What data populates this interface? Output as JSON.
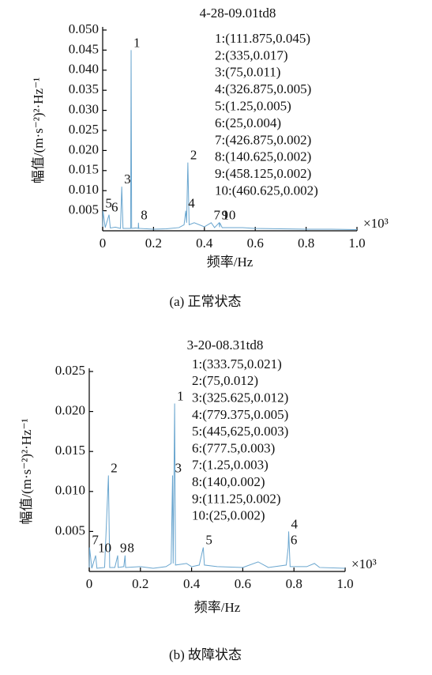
{
  "chart_data": [
    {
      "type": "line",
      "title": "4-28-09.01td8",
      "x_label": "频率/Hz",
      "y_label": "幅值/(m·s⁻²)²·Hz⁻¹",
      "x_multiplier": "×10³",
      "caption": "(a) 正常状态",
      "xlim": [
        0,
        1
      ],
      "xticks": [
        0,
        0.2,
        0.4,
        0.6,
        0.8,
        {
          "value": 1,
          "label": "1.0"
        }
      ],
      "ylim": [
        0,
        0.05
      ],
      "yticks": [
        0.005,
        {
          "value": 0.01,
          "label": "0.010"
        },
        0.015,
        {
          "value": 0.02,
          "label": "0.020"
        },
        0.025,
        {
          "value": 0.03,
          "label": "0.030"
        },
        0.035,
        {
          "value": 0.04,
          "label": "0.040"
        },
        0.045,
        {
          "value": 0.05,
          "label": "0.050"
        }
      ],
      "x": [
        0,
        0.00125,
        0.01,
        0.025,
        0.03,
        0.05,
        0.07,
        0.075,
        0.08,
        0.1,
        0.11,
        0.111875,
        0.114,
        0.13,
        0.14,
        0.140625,
        0.142,
        0.2,
        0.25,
        0.3,
        0.32,
        0.326875,
        0.33,
        0.335,
        0.34,
        0.36,
        0.4,
        0.426875,
        0.44,
        0.458125,
        0.46,
        0.460625,
        0.47,
        0.55,
        0.6,
        0.7,
        0.8,
        0.9,
        1.0
      ],
      "series": [
        {
          "color": "#6aa6cf",
          "values": [
            0.001,
            0.005,
            0.0008,
            0.004,
            0.0007,
            0.0009,
            0.0006,
            0.011,
            0.0006,
            0.0006,
            0.0006,
            0.045,
            0.0006,
            0.0007,
            0.0006,
            0.002,
            0.0006,
            0.0004,
            0.0005,
            0.0008,
            0.0015,
            0.005,
            0.002,
            0.017,
            0.0015,
            0.002,
            0.001,
            0.002,
            0.0008,
            0.002,
            0.0009,
            0.002,
            0.0008,
            0.0008,
            0.0006,
            0.0005,
            0.0004,
            0.0004,
            0.0003
          ]
        }
      ],
      "peak_labels": [
        {
          "text": "1",
          "x": 0.111875,
          "y": 0.045
        },
        {
          "text": "2",
          "x": 0.335,
          "y": 0.017
        },
        {
          "text": "3",
          "x": 0.075,
          "y": 0.011
        },
        {
          "text": "4",
          "x": 0.326875,
          "y": 0.005
        },
        {
          "text": "5",
          "x": 0.00125,
          "y": 0.005
        },
        {
          "text": "6",
          "x": 0.025,
          "y": 0.004
        },
        {
          "text": "7",
          "x": 0.426875,
          "y": 0.002
        },
        {
          "text": "8",
          "x": 0.140625,
          "y": 0.002
        },
        {
          "text": "9",
          "x": 0.458125,
          "y": 0.002
        },
        {
          "text": "10",
          "x": 0.460625,
          "y": 0.002
        }
      ],
      "annotations": [
        "1:(111.875,0.045)",
        "2:(335,0.017)",
        "3:(75,0.011)",
        "4:(326.875,0.005)",
        "5:(1.25,0.005)",
        "6:(25,0.004)",
        "7:(426.875,0.002)",
        "8:(140.625,0.002)",
        "9:(458.125,0.002)",
        "10:(460.625,0.002)"
      ]
    },
    {
      "type": "line",
      "title": "3-20-08.31td8",
      "x_label": "频率/Hz",
      "y_label": "幅值/(m·s⁻²)²·Hz⁻¹",
      "x_multiplier": "×10³",
      "caption": "(b) 故障状态",
      "xlim": [
        0,
        1
      ],
      "xticks": [
        0,
        0.2,
        0.4,
        0.6,
        0.8,
        {
          "value": 1,
          "label": "1.0"
        }
      ],
      "ylim": [
        0,
        0.025
      ],
      "yticks": [
        0.005,
        {
          "value": 0.01,
          "label": "0.010"
        },
        0.015,
        {
          "value": 0.02,
          "label": "0.020"
        },
        0.025
      ],
      "x": [
        0,
        0.00125,
        0.01,
        0.025,
        0.03,
        0.06,
        0.075,
        0.08,
        0.1,
        0.11125,
        0.113,
        0.135,
        0.14,
        0.142,
        0.2,
        0.25,
        0.3,
        0.32,
        0.325625,
        0.328,
        0.33375,
        0.337,
        0.38,
        0.4,
        0.43,
        0.445625,
        0.45,
        0.5,
        0.6,
        0.66,
        0.7,
        0.77,
        0.7775,
        0.779375,
        0.785,
        0.85,
        0.88,
        0.9,
        1.0
      ],
      "series": [
        {
          "color": "#6aa6cf",
          "values": [
            0.0005,
            0.003,
            0.0004,
            0.002,
            0.0004,
            0.0005,
            0.012,
            0.0005,
            0.0005,
            0.002,
            0.0005,
            0.0006,
            0.002,
            0.0005,
            0.0006,
            0.0004,
            0.0006,
            0.001,
            0.012,
            0.001,
            0.021,
            0.0008,
            0.001,
            0.0006,
            0.0008,
            0.003,
            0.0008,
            0.0006,
            0.0005,
            0.0012,
            0.0005,
            0.0008,
            0.003,
            0.005,
            0.0006,
            0.0006,
            0.001,
            0.0005,
            0.0004
          ]
        }
      ],
      "peak_labels": [
        {
          "text": "1",
          "x": 0.33375,
          "y": 0.021
        },
        {
          "text": "2",
          "x": 0.075,
          "y": 0.012
        },
        {
          "text": "3",
          "x": 0.325625,
          "y": 0.012
        },
        {
          "text": "4",
          "x": 0.779375,
          "y": 0.005
        },
        {
          "text": "5",
          "x": 0.445625,
          "y": 0.003
        },
        {
          "text": "6",
          "x": 0.7775,
          "y": 0.003
        },
        {
          "text": "7",
          "x": 0.00125,
          "y": 0.003
        },
        {
          "text": "8",
          "x": 0.14,
          "y": 0.002
        },
        {
          "text": "9",
          "x": 0.11125,
          "y": 0.002
        },
        {
          "text": "10",
          "x": 0.025,
          "y": 0.002
        }
      ],
      "annotations": [
        "1:(333.75,0.021)",
        "2:(75,0.012)",
        "3:(325.625,0.012)",
        "4:(779.375,0.005)",
        "5:(445,625,0.003)",
        "6:(777.5,0.003)",
        "7:(1.25,0.003)",
        "8:(140,0.002)",
        "9:(111.25,0.002)",
        "10:(25,0.002)"
      ]
    }
  ]
}
